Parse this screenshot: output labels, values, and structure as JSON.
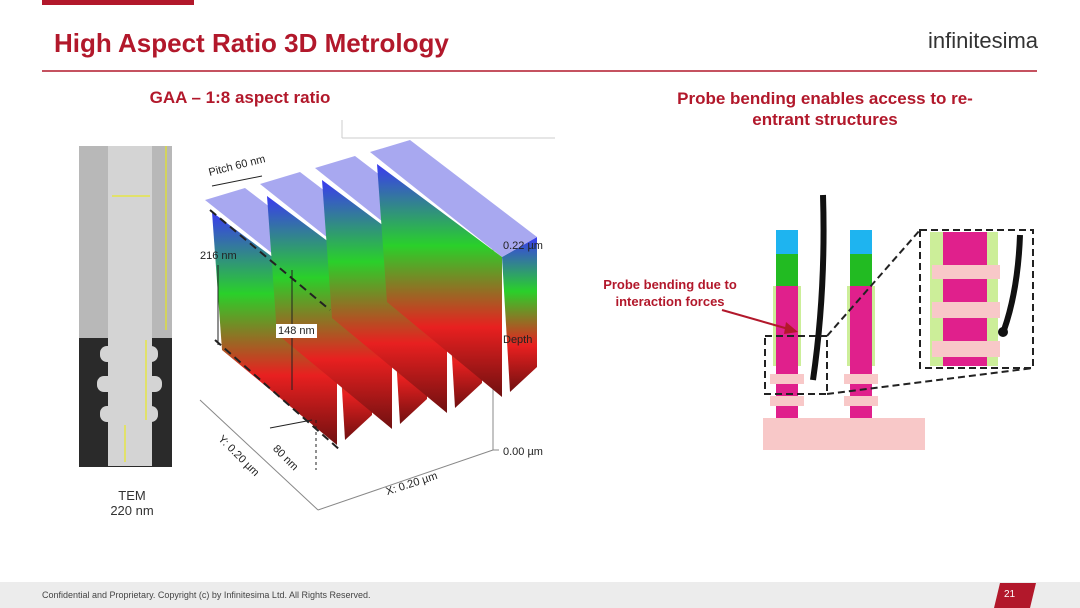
{
  "header": {
    "title": "High Aspect Ratio 3D Metrology",
    "logo": "infinitesima"
  },
  "left": {
    "heading": "GAA – 1:8 aspect ratio",
    "tem_label": "TEM",
    "tem_size": "220 nm",
    "plot": {
      "pitch": "Pitch 60 nm",
      "height_total": "216 nm",
      "height_inner": "148 nm",
      "depth_max": "0.22 µm",
      "depth_label": "Depth",
      "depth_min": "0.00 µm",
      "y_axis": "Y: 0.20 µm",
      "width": "80 nm",
      "x_axis": "X: 0.20 µm"
    }
  },
  "right": {
    "heading": "Probe bending enables access to re-entrant structures",
    "annotation": "Probe bending due to interaction forces"
  },
  "footer": {
    "text": "Confidential and Proprietary. Copyright (c) by Infinitesima Ltd. All Rights Reserved.",
    "page": "21"
  }
}
